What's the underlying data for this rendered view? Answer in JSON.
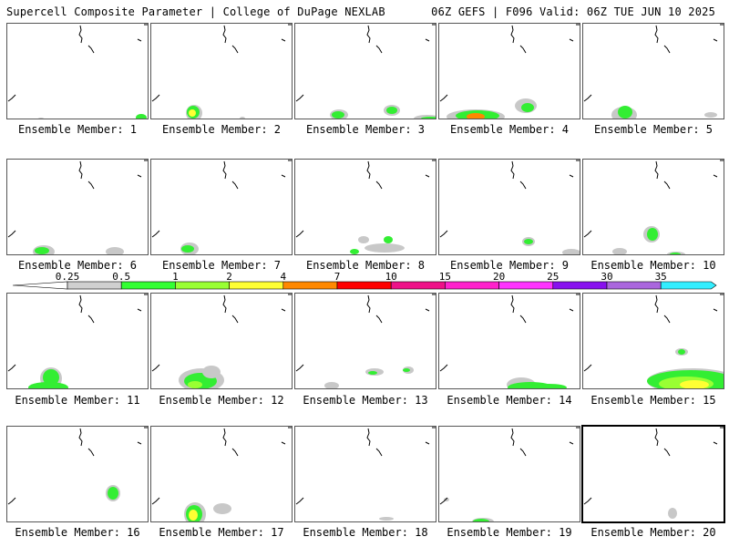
{
  "header": {
    "left": "Supercell Composite Parameter | College of DuPage NEXLAB",
    "right": "06Z GEFS | F096 Valid: 06Z TUE JUN 10 2025"
  },
  "colorbar": {
    "ticks": [
      "0.25",
      "0.5",
      "1",
      "2",
      "4",
      "7",
      "10",
      "15",
      "20",
      "25",
      "30",
      "35"
    ],
    "colors": [
      "#d0d0d0",
      "#33ff33",
      "#99ff33",
      "#ffff33",
      "#ff8800",
      "#ff0000",
      "#ee1188",
      "#ff22cc",
      "#ff33ff",
      "#8811ee",
      "#aa66dd",
      "#33eeff"
    ]
  },
  "panels": [
    {
      "label": "Ensemble Member: 1"
    },
    {
      "label": "Ensemble Member: 2"
    },
    {
      "label": "Ensemble Member: 3"
    },
    {
      "label": "Ensemble Member: 4"
    },
    {
      "label": "Ensemble Member: 5"
    },
    {
      "label": "Ensemble Member: 6"
    },
    {
      "label": "Ensemble Member: 7"
    },
    {
      "label": "Ensemble Member: 8"
    },
    {
      "label": "Ensemble Member: 9"
    },
    {
      "label": "Ensemble Member: 10"
    },
    {
      "label": "Ensemble Member: 11"
    },
    {
      "label": "Ensemble Member: 12"
    },
    {
      "label": "Ensemble Member: 13"
    },
    {
      "label": "Ensemble Member: 14"
    },
    {
      "label": "Ensemble Member: 15"
    },
    {
      "label": "Ensemble Member: 16"
    },
    {
      "label": "Ensemble Member: 17"
    },
    {
      "label": "Ensemble Member: 18"
    },
    {
      "label": "Ensemble Member: 19"
    },
    {
      "label": "Ensemble Member: 20"
    }
  ]
}
